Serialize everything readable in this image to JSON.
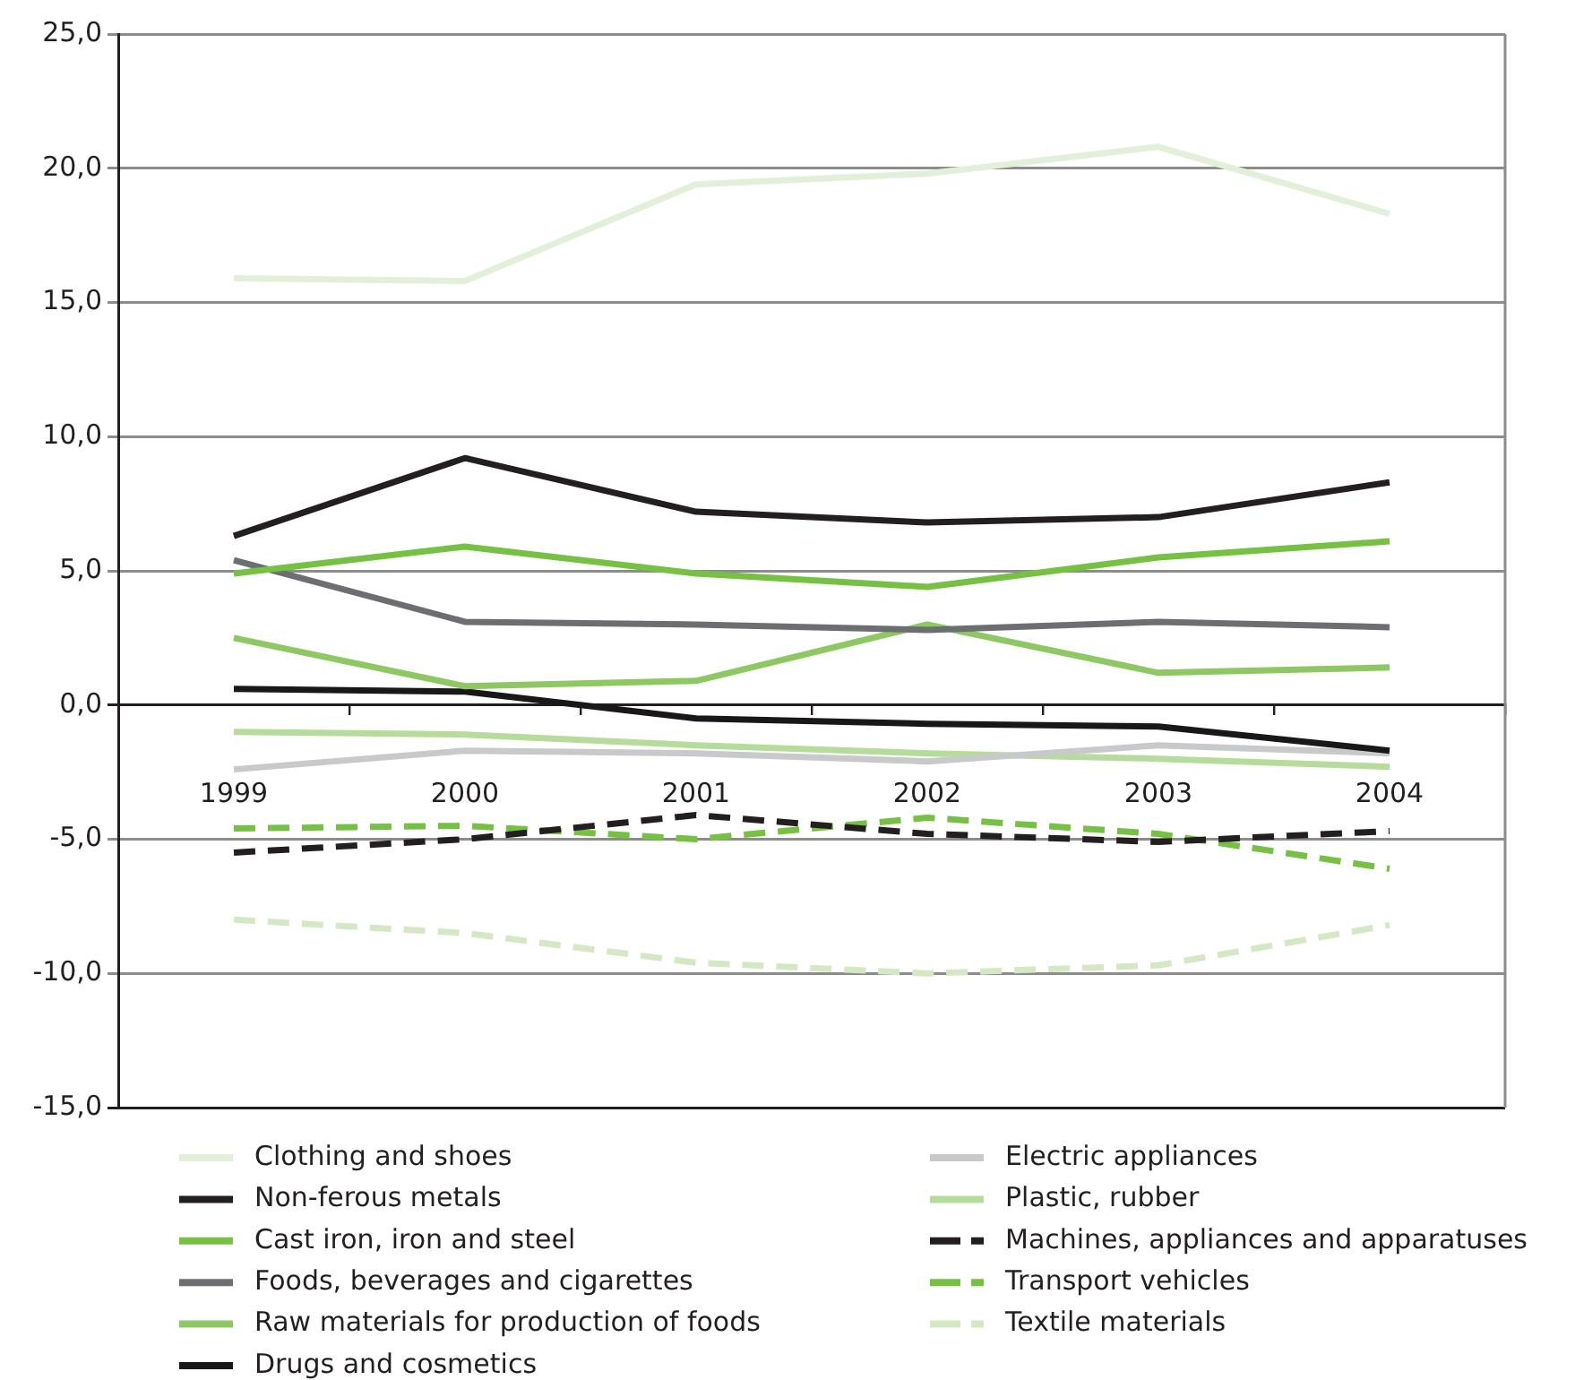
{
  "chart_data": {
    "type": "line",
    "categories": [
      "1999",
      "2000",
      "2001",
      "2002",
      "2003",
      "2004"
    ],
    "ylim": [
      -15,
      25
    ],
    "yticks": [
      {
        "value": -15,
        "label": "-15,0"
      },
      {
        "value": -10,
        "label": "-10,0"
      },
      {
        "value": -5,
        "label": "-5,0"
      },
      {
        "value": 0,
        "label": "0,0"
      },
      {
        "value": 5,
        "label": "5,0"
      },
      {
        "value": 10,
        "label": "10,0"
      },
      {
        "value": 15,
        "label": "15,0"
      },
      {
        "value": 20,
        "label": "20,0"
      },
      {
        "value": 25,
        "label": "25,0"
      }
    ],
    "grid": "y",
    "legend": "bottom",
    "series": [
      {
        "name": "Clothing and shoes",
        "color": "#e2efd9",
        "values": [
          15.9,
          15.8,
          19.4,
          19.8,
          20.8,
          18.3
        ]
      },
      {
        "name": "Non-ferous metals",
        "color": "#231f20",
        "values": [
          6.3,
          9.2,
          7.2,
          6.8,
          7.0,
          8.3
        ]
      },
      {
        "name": "Cast iron, iron and steel",
        "color": "#76c043",
        "values": [
          4.9,
          5.9,
          4.9,
          4.4,
          5.5,
          6.1
        ]
      },
      {
        "name": "Foods, beverages and cigarettes",
        "color": "#6d6e71",
        "values": [
          5.4,
          3.1,
          3.0,
          2.8,
          3.1,
          2.9
        ]
      },
      {
        "name": "Raw materials for production of foods",
        "color": "#8dc862",
        "values": [
          2.5,
          0.7,
          0.9,
          3.0,
          1.2,
          1.4
        ]
      },
      {
        "name": "Drugs and cosmetics",
        "color": "#1a1718",
        "values": [
          0.6,
          0.5,
          -0.5,
          -0.7,
          -0.8,
          -1.7
        ]
      },
      {
        "name": "Electric appliances",
        "color": "#c8c9cb",
        "values": [
          -2.4,
          -1.7,
          -1.8,
          -2.1,
          -1.5,
          -1.8
        ]
      },
      {
        "name": "Plastic, rubber",
        "color": "#b5dc9a",
        "values": [
          -1.0,
          -1.1,
          -1.5,
          -1.8,
          -2.0,
          -2.3
        ]
      },
      {
        "name": "Machines, appliances and apparatuses",
        "color": "#231f20",
        "line_style": "dashed",
        "values": [
          -5.5,
          -5.0,
          -4.1,
          -4.8,
          -5.1,
          -4.7
        ]
      },
      {
        "name": "Transport vehicles",
        "color": "#76c043",
        "line_style": "dashed",
        "values": [
          -4.6,
          -4.5,
          -5.0,
          -4.2,
          -4.8,
          -6.1
        ]
      },
      {
        "name": "Textile materials",
        "color": "#d5e8c4",
        "line_style": "dashed",
        "values": [
          -8.0,
          -8.5,
          -9.6,
          -10.0,
          -9.7,
          -8.2
        ]
      }
    ]
  }
}
